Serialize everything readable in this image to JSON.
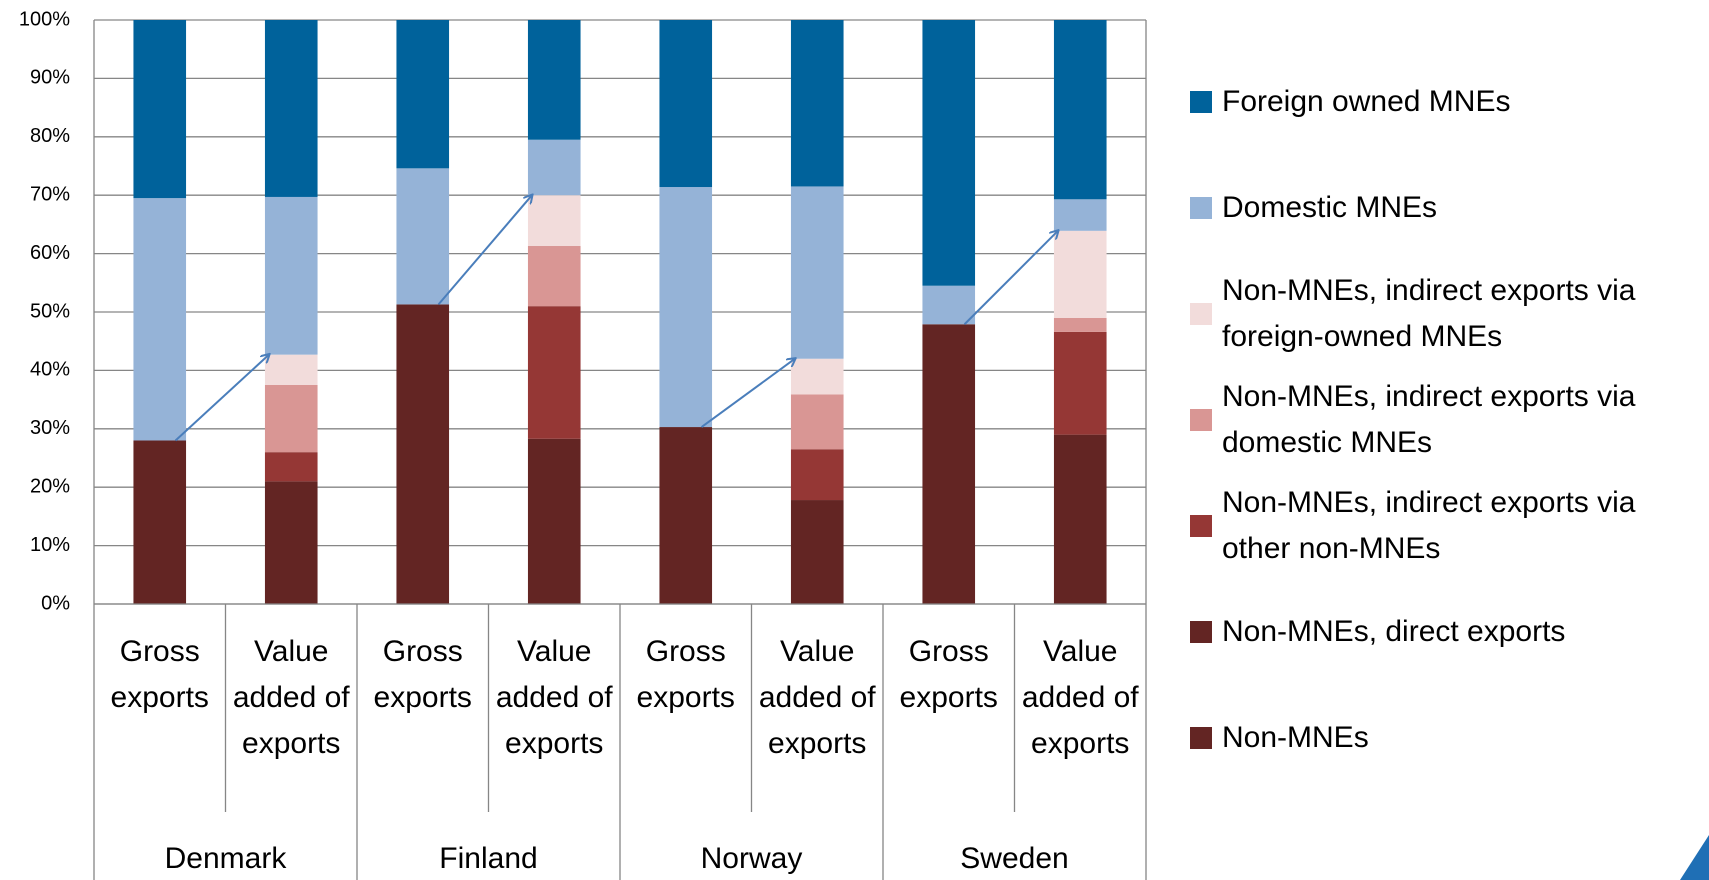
{
  "chart_data": {
    "type": "stacked_bar",
    "categories": [
      "Gross exports",
      "Value added of exports",
      "Gross exports",
      "Value added of exports",
      "Gross exports",
      "Value added of exports",
      "Gross exports",
      "Value added of exports"
    ],
    "groups": [
      "Denmark",
      "Finland",
      "Norway",
      "Sweden"
    ],
    "series": [
      {
        "name": "Non-MNEs",
        "color": "#632523",
        "values": [
          28,
          null,
          51.3,
          null,
          30.3,
          null,
          47.9,
          null
        ]
      },
      {
        "name": "Non-MNEs, direct exports",
        "color": "#632523",
        "values": [
          null,
          21,
          null,
          28.3,
          null,
          17.8,
          null,
          29
        ]
      },
      {
        "name": "Non-MNEs, indirect exports via other non-MNEs",
        "color": "#953735",
        "values": [
          null,
          5,
          null,
          22.7,
          null,
          8.7,
          null,
          17.6
        ]
      },
      {
        "name": "Non-MNEs, indirect exports via domestic MNEs",
        "color": "#d99694",
        "values": [
          null,
          11.5,
          null,
          10.3,
          null,
          9.4,
          null,
          2.4
        ]
      },
      {
        "name": "Non-MNEs, indirect exports via foreign-owned MNEs",
        "color": "#f2dcdb",
        "values": [
          null,
          5.2,
          null,
          8.7,
          null,
          6.1,
          null,
          14.9
        ]
      },
      {
        "name": "Domestic MNEs",
        "color": "#95b3d7",
        "values": [
          41.5,
          27,
          23.3,
          9.5,
          41.1,
          29.5,
          6.6,
          5.4
        ]
      },
      {
        "name": "Foreign owned MNEs",
        "color": "#00629b",
        "values": [
          30.5,
          30.3,
          25.4,
          20.5,
          28.6,
          28.5,
          45.5,
          30.7
        ]
      }
    ],
    "ylim": [
      0,
      100
    ],
    "yticks": [
      {
        "value": 0,
        "label": "0%"
      },
      {
        "value": 10,
        "label": "10%"
      },
      {
        "value": 20,
        "label": "20%"
      },
      {
        "value": 30,
        "label": "30%"
      },
      {
        "value": 40,
        "label": "40%"
      },
      {
        "value": 50,
        "label": "50%"
      },
      {
        "value": 60,
        "label": "60%"
      },
      {
        "value": 70,
        "label": "70%"
      },
      {
        "value": 80,
        "label": "80%"
      },
      {
        "value": 90,
        "label": "90%"
      },
      {
        "value": 100,
        "label": "100%"
      }
    ],
    "grid": true,
    "legend": "right"
  }
}
